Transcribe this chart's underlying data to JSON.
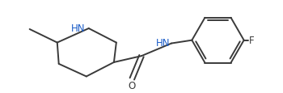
{
  "bg_color": "#ffffff",
  "line_color": "#3a3a3a",
  "text_color": "#3a3a3a",
  "nh_color": "#1a5cc8",
  "bond_lw": 1.4,
  "font_size": 8.5,
  "figsize": [
    3.5,
    1.16
  ],
  "dpi": 100,
  "xlim": [
    0,
    350
  ],
  "ylim": [
    0,
    116
  ]
}
